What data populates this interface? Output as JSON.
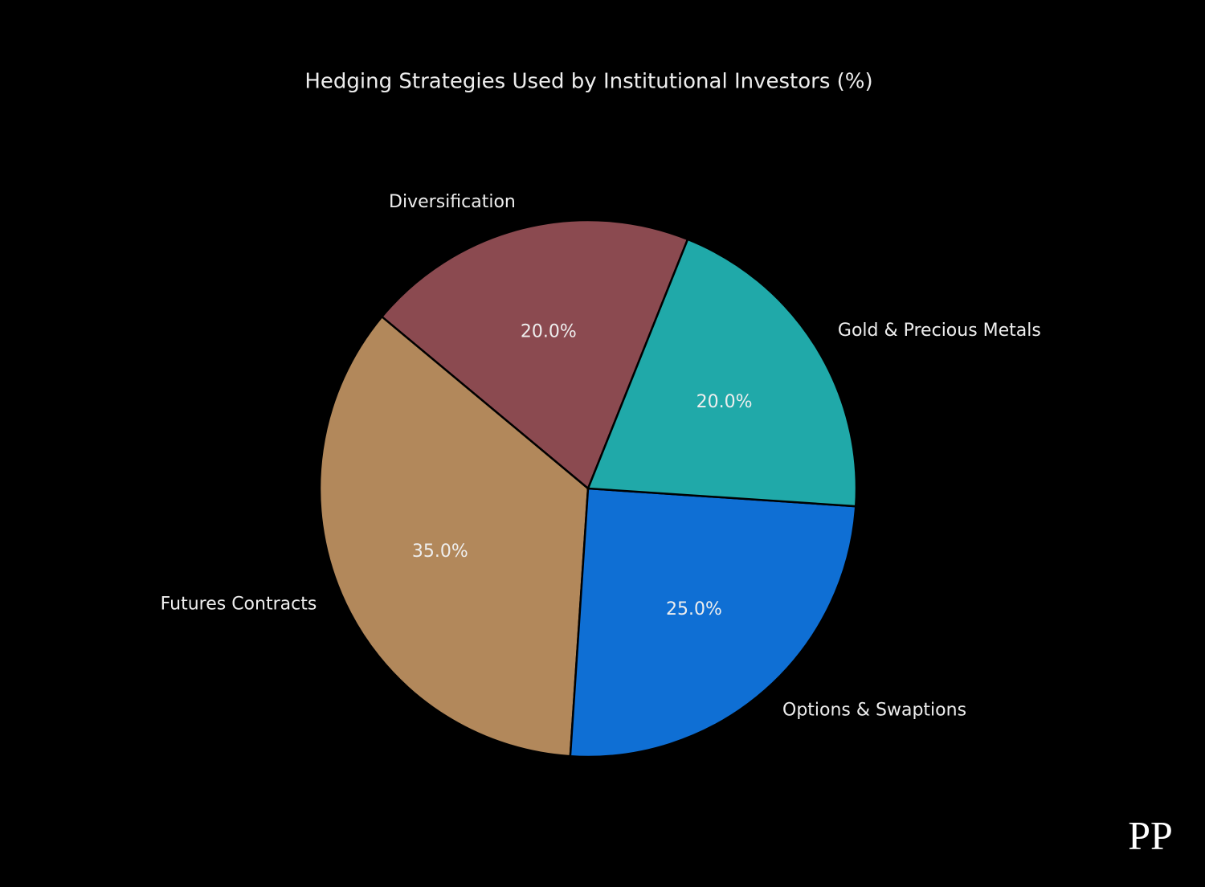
{
  "chart_data": {
    "type": "pie",
    "title": "Hedging Strategies Used by Institutional Investors (%)",
    "categories": [
      "Diversification",
      "Futures Contracts",
      "Options & Swaptions",
      "Gold & Precious Metals"
    ],
    "values": [
      20,
      35,
      25,
      20
    ],
    "value_labels": [
      "20.0%",
      "35.0%",
      "25.0%",
      "20.0%"
    ],
    "colors": [
      "#8b4a50",
      "#b2885b",
      "#0f6fd4",
      "#20a9a9"
    ]
  },
  "watermark": "PP"
}
